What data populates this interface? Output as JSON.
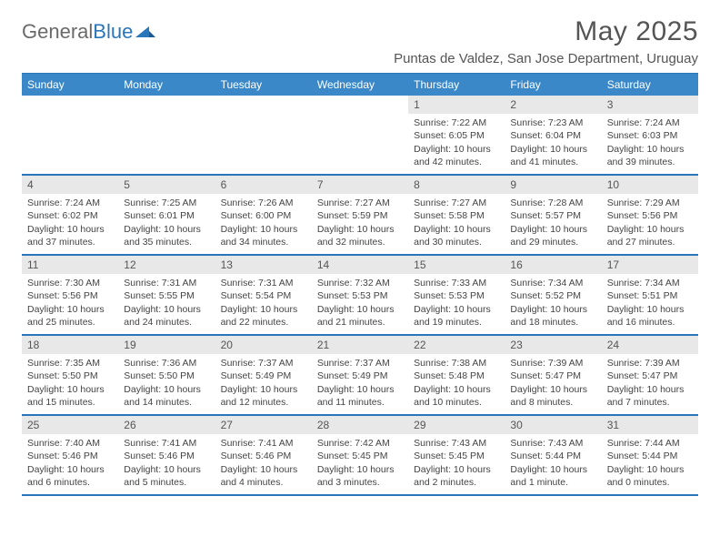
{
  "brand": {
    "part1": "General",
    "part2": "Blue"
  },
  "header": {
    "month_title": "May 2025",
    "location": "Puntas de Valdez, San Jose Department, Uruguay"
  },
  "colors": {
    "header_bar": "#3b88c9",
    "accent": "#2976bb",
    "day_num_bg": "#e8e8e8",
    "text": "#444444",
    "title_text": "#555555"
  },
  "days_of_week": [
    "Sunday",
    "Monday",
    "Tuesday",
    "Wednesday",
    "Thursday",
    "Friday",
    "Saturday"
  ],
  "weeks": [
    [
      {
        "num": "",
        "sunrise": "",
        "sunset": "",
        "daylight1": "",
        "daylight2": ""
      },
      {
        "num": "",
        "sunrise": "",
        "sunset": "",
        "daylight1": "",
        "daylight2": ""
      },
      {
        "num": "",
        "sunrise": "",
        "sunset": "",
        "daylight1": "",
        "daylight2": ""
      },
      {
        "num": "",
        "sunrise": "",
        "sunset": "",
        "daylight1": "",
        "daylight2": ""
      },
      {
        "num": "1",
        "sunrise": "Sunrise: 7:22 AM",
        "sunset": "Sunset: 6:05 PM",
        "daylight1": "Daylight: 10 hours",
        "daylight2": "and 42 minutes."
      },
      {
        "num": "2",
        "sunrise": "Sunrise: 7:23 AM",
        "sunset": "Sunset: 6:04 PM",
        "daylight1": "Daylight: 10 hours",
        "daylight2": "and 41 minutes."
      },
      {
        "num": "3",
        "sunrise": "Sunrise: 7:24 AM",
        "sunset": "Sunset: 6:03 PM",
        "daylight1": "Daylight: 10 hours",
        "daylight2": "and 39 minutes."
      }
    ],
    [
      {
        "num": "4",
        "sunrise": "Sunrise: 7:24 AM",
        "sunset": "Sunset: 6:02 PM",
        "daylight1": "Daylight: 10 hours",
        "daylight2": "and 37 minutes."
      },
      {
        "num": "5",
        "sunrise": "Sunrise: 7:25 AM",
        "sunset": "Sunset: 6:01 PM",
        "daylight1": "Daylight: 10 hours",
        "daylight2": "and 35 minutes."
      },
      {
        "num": "6",
        "sunrise": "Sunrise: 7:26 AM",
        "sunset": "Sunset: 6:00 PM",
        "daylight1": "Daylight: 10 hours",
        "daylight2": "and 34 minutes."
      },
      {
        "num": "7",
        "sunrise": "Sunrise: 7:27 AM",
        "sunset": "Sunset: 5:59 PM",
        "daylight1": "Daylight: 10 hours",
        "daylight2": "and 32 minutes."
      },
      {
        "num": "8",
        "sunrise": "Sunrise: 7:27 AM",
        "sunset": "Sunset: 5:58 PM",
        "daylight1": "Daylight: 10 hours",
        "daylight2": "and 30 minutes."
      },
      {
        "num": "9",
        "sunrise": "Sunrise: 7:28 AM",
        "sunset": "Sunset: 5:57 PM",
        "daylight1": "Daylight: 10 hours",
        "daylight2": "and 29 minutes."
      },
      {
        "num": "10",
        "sunrise": "Sunrise: 7:29 AM",
        "sunset": "Sunset: 5:56 PM",
        "daylight1": "Daylight: 10 hours",
        "daylight2": "and 27 minutes."
      }
    ],
    [
      {
        "num": "11",
        "sunrise": "Sunrise: 7:30 AM",
        "sunset": "Sunset: 5:56 PM",
        "daylight1": "Daylight: 10 hours",
        "daylight2": "and 25 minutes."
      },
      {
        "num": "12",
        "sunrise": "Sunrise: 7:31 AM",
        "sunset": "Sunset: 5:55 PM",
        "daylight1": "Daylight: 10 hours",
        "daylight2": "and 24 minutes."
      },
      {
        "num": "13",
        "sunrise": "Sunrise: 7:31 AM",
        "sunset": "Sunset: 5:54 PM",
        "daylight1": "Daylight: 10 hours",
        "daylight2": "and 22 minutes."
      },
      {
        "num": "14",
        "sunrise": "Sunrise: 7:32 AM",
        "sunset": "Sunset: 5:53 PM",
        "daylight1": "Daylight: 10 hours",
        "daylight2": "and 21 minutes."
      },
      {
        "num": "15",
        "sunrise": "Sunrise: 7:33 AM",
        "sunset": "Sunset: 5:53 PM",
        "daylight1": "Daylight: 10 hours",
        "daylight2": "and 19 minutes."
      },
      {
        "num": "16",
        "sunrise": "Sunrise: 7:34 AM",
        "sunset": "Sunset: 5:52 PM",
        "daylight1": "Daylight: 10 hours",
        "daylight2": "and 18 minutes."
      },
      {
        "num": "17",
        "sunrise": "Sunrise: 7:34 AM",
        "sunset": "Sunset: 5:51 PM",
        "daylight1": "Daylight: 10 hours",
        "daylight2": "and 16 minutes."
      }
    ],
    [
      {
        "num": "18",
        "sunrise": "Sunrise: 7:35 AM",
        "sunset": "Sunset: 5:50 PM",
        "daylight1": "Daylight: 10 hours",
        "daylight2": "and 15 minutes."
      },
      {
        "num": "19",
        "sunrise": "Sunrise: 7:36 AM",
        "sunset": "Sunset: 5:50 PM",
        "daylight1": "Daylight: 10 hours",
        "daylight2": "and 14 minutes."
      },
      {
        "num": "20",
        "sunrise": "Sunrise: 7:37 AM",
        "sunset": "Sunset: 5:49 PM",
        "daylight1": "Daylight: 10 hours",
        "daylight2": "and 12 minutes."
      },
      {
        "num": "21",
        "sunrise": "Sunrise: 7:37 AM",
        "sunset": "Sunset: 5:49 PM",
        "daylight1": "Daylight: 10 hours",
        "daylight2": "and 11 minutes."
      },
      {
        "num": "22",
        "sunrise": "Sunrise: 7:38 AM",
        "sunset": "Sunset: 5:48 PM",
        "daylight1": "Daylight: 10 hours",
        "daylight2": "and 10 minutes."
      },
      {
        "num": "23",
        "sunrise": "Sunrise: 7:39 AM",
        "sunset": "Sunset: 5:47 PM",
        "daylight1": "Daylight: 10 hours",
        "daylight2": "and 8 minutes."
      },
      {
        "num": "24",
        "sunrise": "Sunrise: 7:39 AM",
        "sunset": "Sunset: 5:47 PM",
        "daylight1": "Daylight: 10 hours",
        "daylight2": "and 7 minutes."
      }
    ],
    [
      {
        "num": "25",
        "sunrise": "Sunrise: 7:40 AM",
        "sunset": "Sunset: 5:46 PM",
        "daylight1": "Daylight: 10 hours",
        "daylight2": "and 6 minutes."
      },
      {
        "num": "26",
        "sunrise": "Sunrise: 7:41 AM",
        "sunset": "Sunset: 5:46 PM",
        "daylight1": "Daylight: 10 hours",
        "daylight2": "and 5 minutes."
      },
      {
        "num": "27",
        "sunrise": "Sunrise: 7:41 AM",
        "sunset": "Sunset: 5:46 PM",
        "daylight1": "Daylight: 10 hours",
        "daylight2": "and 4 minutes."
      },
      {
        "num": "28",
        "sunrise": "Sunrise: 7:42 AM",
        "sunset": "Sunset: 5:45 PM",
        "daylight1": "Daylight: 10 hours",
        "daylight2": "and 3 minutes."
      },
      {
        "num": "29",
        "sunrise": "Sunrise: 7:43 AM",
        "sunset": "Sunset: 5:45 PM",
        "daylight1": "Daylight: 10 hours",
        "daylight2": "and 2 minutes."
      },
      {
        "num": "30",
        "sunrise": "Sunrise: 7:43 AM",
        "sunset": "Sunset: 5:44 PM",
        "daylight1": "Daylight: 10 hours",
        "daylight2": "and 1 minute."
      },
      {
        "num": "31",
        "sunrise": "Sunrise: 7:44 AM",
        "sunset": "Sunset: 5:44 PM",
        "daylight1": "Daylight: 10 hours",
        "daylight2": "and 0 minutes."
      }
    ]
  ]
}
